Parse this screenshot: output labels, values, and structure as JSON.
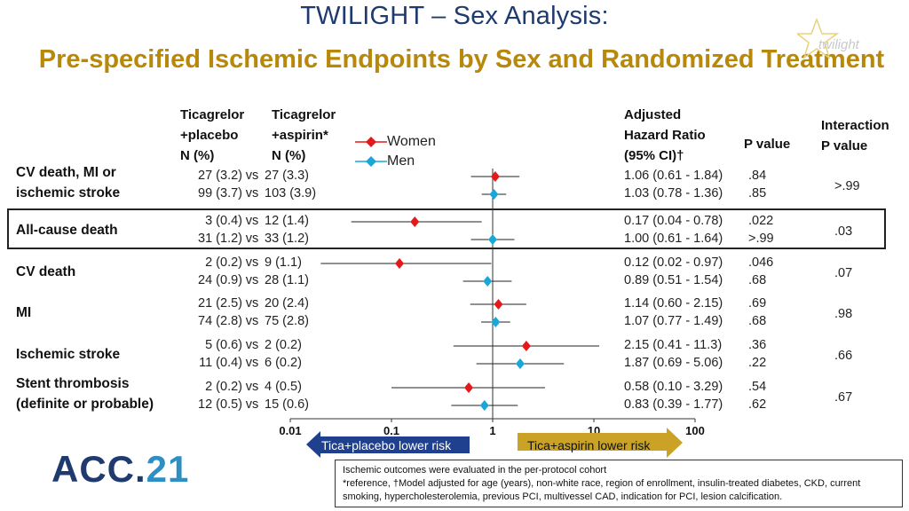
{
  "title": "TWILIGHT – Sex Analysis:",
  "subtitle": "Pre-specified Ischemic Endpoints by Sex and Randomized Treatment",
  "logo_text": "twilight",
  "acc_logo": {
    "main": "ACC.",
    "num": "21"
  },
  "headers": {
    "col1": [
      "Ticagrelor",
      "+placebo",
      "N (%)"
    ],
    "col2": [
      "Ticagrelor",
      "+aspirin*",
      "N (%)"
    ],
    "hr": [
      "Adjusted",
      "Hazard Ratio",
      "(95% CI)†"
    ],
    "p": "P value",
    "interaction": [
      "Interaction",
      "P value"
    ]
  },
  "legend": {
    "women": "Women",
    "men": "Men",
    "women_color": "#e3191c",
    "men_color": "#19a7d8"
  },
  "vs": "vs",
  "chart_data": {
    "type": "forest",
    "x_scale": "log",
    "xlim": [
      0.01,
      100
    ],
    "x_ticks": [
      "0.01",
      "0.1",
      "1",
      "10",
      "100"
    ],
    "x_tick_values": [
      0.01,
      0.1,
      1,
      10,
      100
    ],
    "left_arrow": "Tica+placebo lower risk",
    "right_arrow": "Tica+aspirin lower risk",
    "endpoints": [
      {
        "name": "CV death, MI or ischemic stroke",
        "label_lines": [
          "CV death, MI or",
          "ischemic stroke"
        ],
        "interaction_p": ">.99",
        "women": {
          "tp": "27 (3.2)",
          "ta": "27 (3.3)",
          "hr_text": "1.06 (0.61 - 1.84)",
          "hr": 1.06,
          "lo": 0.61,
          "hi": 1.84,
          "p": ".84"
        },
        "men": {
          "tp": "99 (3.7)",
          "ta": "103 (3.9)",
          "hr_text": "1.03 (0.78 - 1.36)",
          "hr": 1.03,
          "lo": 0.78,
          "hi": 1.36,
          "p": ".85"
        }
      },
      {
        "name": "All-cause death",
        "label_lines": [
          "All-cause death"
        ],
        "interaction_p": ".03",
        "women": {
          "tp": "3 (0.4)",
          "ta": "12 (1.4)",
          "hr_text": "0.17 (0.04 - 0.78)",
          "hr": 0.17,
          "lo": 0.04,
          "hi": 0.78,
          "p": ".022"
        },
        "men": {
          "tp": "31 (1.2)",
          "ta": "33 (1.2)",
          "hr_text": "1.00 (0.61 - 1.64)",
          "hr": 1.0,
          "lo": 0.61,
          "hi": 1.64,
          "p": ">.99"
        }
      },
      {
        "name": "CV death",
        "label_lines": [
          "CV death"
        ],
        "interaction_p": ".07",
        "women": {
          "tp": "2 (0.2)",
          "ta": "9 (1.1)",
          "hr_text": "0.12 (0.02 - 0.97)",
          "hr": 0.12,
          "lo": 0.02,
          "hi": 0.97,
          "p": ".046"
        },
        "men": {
          "tp": "24 (0.9)",
          "ta": "28 (1.1)",
          "hr_text": "0.89 (0.51 - 1.54)",
          "hr": 0.89,
          "lo": 0.51,
          "hi": 1.54,
          "p": ".68"
        }
      },
      {
        "name": "MI",
        "label_lines": [
          "MI"
        ],
        "interaction_p": ".98",
        "women": {
          "tp": "21 (2.5)",
          "ta": "20 (2.4)",
          "hr_text": "1.14 (0.60 - 2.15)",
          "hr": 1.14,
          "lo": 0.6,
          "hi": 2.15,
          "p": ".69"
        },
        "men": {
          "tp": "74 (2.8)",
          "ta": "75 (2.8)",
          "hr_text": "1.07 (0.77 - 1.49)",
          "hr": 1.07,
          "lo": 0.77,
          "hi": 1.49,
          "p": ".68"
        }
      },
      {
        "name": "Ischemic stroke",
        "label_lines": [
          "Ischemic stroke"
        ],
        "interaction_p": ".66",
        "women": {
          "tp": "5 (0.6)",
          "ta": "2 (0.2)",
          "hr_text": "2.15 (0.41 - 11.3)",
          "hr": 2.15,
          "lo": 0.41,
          "hi": 11.3,
          "p": ".36"
        },
        "men": {
          "tp": "11 (0.4)",
          "ta": "6 (0.2)",
          "hr_text": "1.87 (0.69 - 5.06)",
          "hr": 1.87,
          "lo": 0.69,
          "hi": 5.06,
          "p": ".22"
        }
      },
      {
        "name": "Stent thrombosis (definite or probable)",
        "label_lines": [
          "Stent thrombosis",
          "(definite or probable)"
        ],
        "interaction_p": ".67",
        "women": {
          "tp": "2 (0.2)",
          "ta": "4 (0.5)",
          "hr_text": "0.58 (0.10 - 3.29)",
          "hr": 0.58,
          "lo": 0.1,
          "hi": 3.29,
          "p": ".54"
        },
        "men": {
          "tp": "12 (0.5)",
          "ta": "15 (0.6)",
          "hr_text": "0.83 (0.39 - 1.77)",
          "hr": 0.83,
          "lo": 0.39,
          "hi": 1.77,
          "p": ".62"
        }
      }
    ]
  },
  "footer": {
    "line1": "Ischemic outcomes were evaluated in the per-protocol cohort",
    "line2": "*reference, †Model adjusted for age (years), non-white race, region of enrollment, insulin-treated diabetes, CKD, current smoking, hypercholesterolemia, previous PCI, multivessel CAD, indication for PCI, lesion calcification."
  }
}
